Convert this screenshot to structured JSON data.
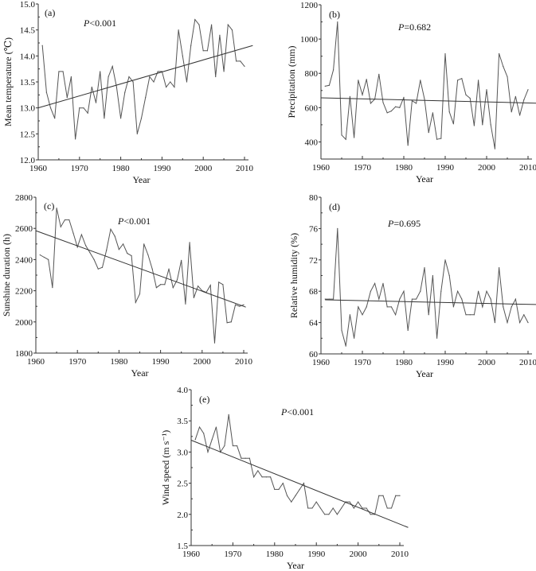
{
  "chart_data": [
    {
      "id": "a",
      "type": "line",
      "panel_label": "(a)",
      "p_value": {
        "symbol": "P",
        "text": "<0.001"
      },
      "xlabel": "Year",
      "ylabel": "Mean temperature (℃)",
      "xlim": [
        1960,
        2012
      ],
      "ylim": [
        12.0,
        15.0
      ],
      "xticks": [
        1960,
        1970,
        1980,
        1990,
        2000,
        2010
      ],
      "yticks": [
        12.0,
        12.5,
        13.0,
        13.5,
        14.0,
        14.5,
        15.0
      ],
      "ytick_labels": [
        "12.0",
        "12.5",
        "13.0",
        "13.5",
        "14.0",
        "14.5",
        "15.0"
      ],
      "x": [
        1961,
        1962,
        1963,
        1964,
        1965,
        1966,
        1967,
        1968,
        1969,
        1970,
        1971,
        1972,
        1973,
        1974,
        1975,
        1976,
        1977,
        1978,
        1979,
        1980,
        1981,
        1982,
        1983,
        1984,
        1985,
        1986,
        1987,
        1988,
        1989,
        1990,
        1991,
        1992,
        1993,
        1994,
        1995,
        1996,
        1997,
        1998,
        1999,
        2000,
        2001,
        2002,
        2003,
        2004,
        2005,
        2006,
        2007,
        2008,
        2009,
        2010
      ],
      "values": [
        14.2,
        13.3,
        13.0,
        12.8,
        13.7,
        13.7,
        13.2,
        13.6,
        12.4,
        13.0,
        13.0,
        12.9,
        13.4,
        13.1,
        13.7,
        12.8,
        13.6,
        13.8,
        13.4,
        12.8,
        13.3,
        13.6,
        13.5,
        12.5,
        12.8,
        13.2,
        13.6,
        13.5,
        13.7,
        13.7,
        13.4,
        13.5,
        13.4,
        14.5,
        14.0,
        13.5,
        14.2,
        14.7,
        14.6,
        14.1,
        14.1,
        14.6,
        13.6,
        14.4,
        13.7,
        14.6,
        14.5,
        13.9,
        13.9,
        13.8
      ],
      "trend": {
        "x": [
          1960,
          2012
        ],
        "y": [
          13.0,
          14.2
        ]
      }
    },
    {
      "id": "b",
      "type": "line",
      "panel_label": "(b)",
      "p_value": {
        "symbol": "P",
        "text": "=0.682"
      },
      "xlabel": "Year",
      "ylabel": "Precipitation (mm)",
      "xlim": [
        1960,
        2012
      ],
      "ylim": [
        300,
        1200
      ],
      "xticks": [
        1960,
        1970,
        1980,
        1990,
        2000,
        2010
      ],
      "yticks": [
        400,
        600,
        800,
        1000,
        1200
      ],
      "ytick_labels": [
        "400",
        "600",
        "800",
        "1000",
        "1200"
      ],
      "x": [
        1961,
        1962,
        1963,
        1964,
        1965,
        1966,
        1967,
        1968,
        1969,
        1970,
        1971,
        1972,
        1973,
        1974,
        1975,
        1976,
        1977,
        1978,
        1979,
        1980,
        1981,
        1982,
        1983,
        1984,
        1985,
        1986,
        1987,
        1988,
        1989,
        1990,
        1991,
        1992,
        1993,
        1994,
        1995,
        1996,
        1997,
        1998,
        1999,
        2000,
        2001,
        2002,
        2003,
        2004,
        2005,
        2006,
        2007,
        2008,
        2009,
        2010
      ],
      "values": [
        725,
        730,
        820,
        1100,
        440,
        415,
        665,
        425,
        760,
        675,
        765,
        625,
        650,
        795,
        630,
        570,
        580,
        605,
        600,
        660,
        380,
        640,
        625,
        760,
        650,
        455,
        570,
        415,
        420,
        915,
        575,
        505,
        760,
        770,
        675,
        655,
        495,
        760,
        500,
        705,
        500,
        360,
        915,
        840,
        780,
        575,
        665,
        555,
        645,
        705
      ],
      "trend": {
        "x": [
          1960,
          2012
        ],
        "y": [
          657,
          626
        ]
      }
    },
    {
      "id": "c",
      "type": "line",
      "panel_label": "(c)",
      "p_value": {
        "symbol": "P",
        "text": "<0.001"
      },
      "xlabel": "Year",
      "ylabel": "Sunshine duration (h)",
      "xlim": [
        1960,
        2011
      ],
      "ylim": [
        1800,
        2800
      ],
      "xticks": [
        1960,
        1970,
        1980,
        1990,
        2000,
        2010
      ],
      "yticks": [
        1800,
        2000,
        2200,
        2400,
        2600,
        2800
      ],
      "ytick_labels": [
        "1800",
        "2000",
        "2200",
        "2400",
        "2600",
        "2800"
      ],
      "x": [
        1961,
        1962,
        1963,
        1964,
        1965,
        1966,
        1967,
        1968,
        1969,
        1970,
        1971,
        1972,
        1973,
        1974,
        1975,
        1976,
        1977,
        1978,
        1979,
        1980,
        1981,
        1982,
        1983,
        1984,
        1985,
        1986,
        1987,
        1988,
        1989,
        1990,
        1991,
        1992,
        1993,
        1994,
        1995,
        1996,
        1997,
        1998,
        1999,
        2000,
        2001,
        2002,
        2003,
        2004,
        2005,
        2006,
        2007,
        2008,
        2009,
        2010
      ],
      "values": [
        2430,
        2415,
        2400,
        2220,
        2730,
        2610,
        2655,
        2655,
        2570,
        2480,
        2560,
        2490,
        2445,
        2400,
        2340,
        2350,
        2460,
        2595,
        2550,
        2465,
        2500,
        2440,
        2425,
        2125,
        2180,
        2500,
        2430,
        2340,
        2220,
        2240,
        2240,
        2340,
        2220,
        2270,
        2395,
        2115,
        2510,
        2155,
        2230,
        2200,
        2190,
        2235,
        1865,
        2255,
        2240,
        1995,
        2000,
        2110,
        2100,
        2110
      ],
      "trend": {
        "x": [
          1960,
          2010.5
        ],
        "y": [
          2585,
          2095
        ]
      }
    },
    {
      "id": "d",
      "type": "line",
      "panel_label": "(d)",
      "p_value": {
        "symbol": "P",
        "text": "=0.695"
      },
      "xlabel": "Year",
      "ylabel": "Relative humidity (%)",
      "xlim": [
        1960,
        2012
      ],
      "ylim": [
        60,
        80
      ],
      "xticks": [
        1960,
        1970,
        1980,
        1990,
        2000,
        2010
      ],
      "yticks": [
        60,
        64,
        68,
        72,
        76,
        80
      ],
      "ytick_labels": [
        "60",
        "64",
        "68",
        "72",
        "76",
        "80"
      ],
      "x": [
        1961,
        1962,
        1963,
        1964,
        1965,
        1966,
        1967,
        1968,
        1969,
        1970,
        1971,
        1972,
        1973,
        1974,
        1975,
        1976,
        1977,
        1978,
        1979,
        1980,
        1981,
        1982,
        1983,
        1984,
        1985,
        1986,
        1987,
        1988,
        1989,
        1990,
        1991,
        1992,
        1993,
        1994,
        1995,
        1996,
        1997,
        1998,
        1999,
        2000,
        2001,
        2002,
        2003,
        2004,
        2005,
        2006,
        2007,
        2008,
        2009,
        2010
      ],
      "values": [
        67,
        67,
        67,
        76,
        63,
        61,
        65,
        62,
        66,
        65,
        66,
        68,
        69,
        67,
        69,
        66,
        66,
        65,
        67,
        68,
        63,
        67,
        67,
        68,
        71,
        65,
        70,
        62,
        68,
        72,
        70,
        66,
        68,
        67,
        65,
        65,
        65,
        68,
        66,
        68,
        67,
        64,
        71,
        66,
        64,
        66,
        67,
        64,
        65,
        64
      ],
      "trend": {
        "x": [
          1961,
          2012
        ],
        "y": [
          66.9,
          66.3
        ]
      }
    },
    {
      "id": "e",
      "type": "line",
      "panel_label": "(e)",
      "p_value": {
        "symbol": "P",
        "text": "<0.001"
      },
      "xlabel": "Year",
      "ylabel": "Wind speed (m s⁻¹)",
      "xlim": [
        1960,
        2011
      ],
      "ylim": [
        1.5,
        4.0
      ],
      "xticks": [
        1960,
        1970,
        1980,
        1990,
        2000,
        2010
      ],
      "yticks": [
        1.5,
        2.0,
        2.5,
        3.0,
        3.5,
        4.0
      ],
      "ytick_labels": [
        "1.5",
        "2.0",
        "2.5",
        "3.0",
        "3.5",
        "4.0"
      ],
      "x": [
        1961,
        1962,
        1963,
        1964,
        1965,
        1966,
        1967,
        1968,
        1969,
        1970,
        1971,
        1972,
        1973,
        1974,
        1975,
        1976,
        1977,
        1978,
        1979,
        1980,
        1981,
        1982,
        1983,
        1984,
        1985,
        1986,
        1987,
        1988,
        1989,
        1990,
        1991,
        1992,
        1993,
        1994,
        1995,
        1996,
        1997,
        1998,
        1999,
        2000,
        2001,
        2002,
        2003,
        2004,
        2005,
        2006,
        2007,
        2008,
        2009,
        2010
      ],
      "values": [
        3.2,
        3.4,
        3.3,
        3.0,
        3.2,
        3.4,
        3.0,
        3.1,
        3.6,
        3.1,
        3.1,
        2.9,
        2.9,
        2.9,
        2.6,
        2.7,
        2.6,
        2.6,
        2.6,
        2.4,
        2.4,
        2.5,
        2.3,
        2.2,
        2.3,
        2.4,
        2.5,
        2.1,
        2.1,
        2.2,
        2.1,
        2.0,
        2.0,
        2.1,
        2.0,
        2.1,
        2.2,
        2.2,
        2.1,
        2.2,
        2.1,
        2.1,
        2.0,
        2.0,
        2.3,
        2.3,
        2.1,
        2.1,
        2.3,
        2.3
      ],
      "trend": {
        "x": [
          1960,
          2012
        ],
        "y": [
          3.19,
          1.79
        ]
      }
    }
  ]
}
